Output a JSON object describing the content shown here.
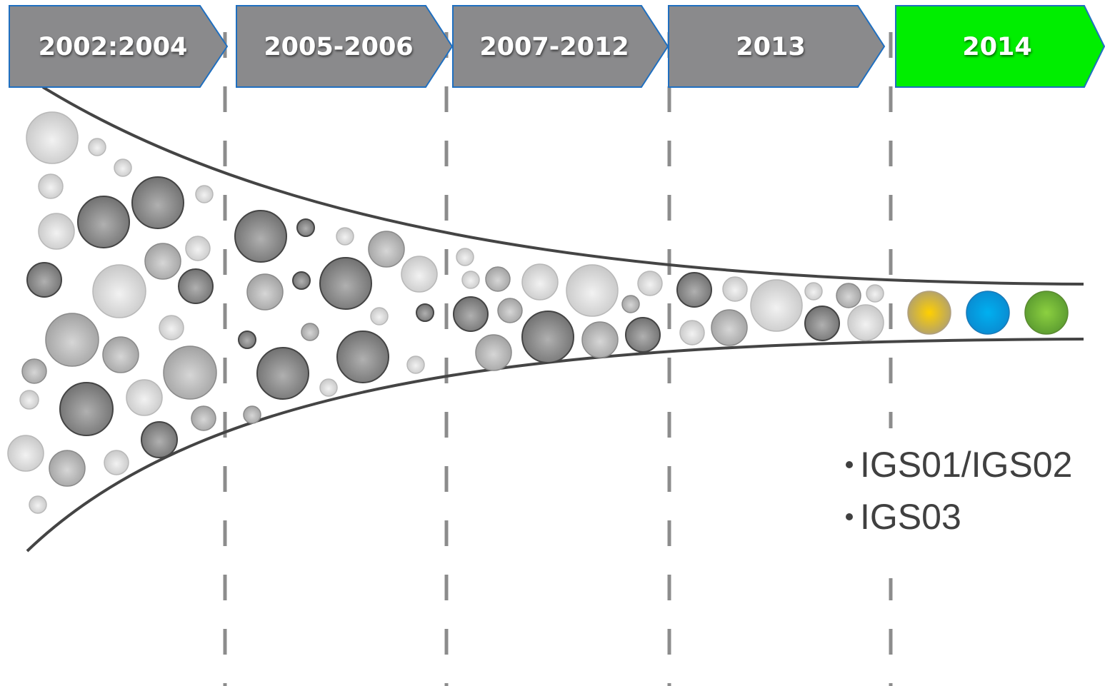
{
  "timeline": [
    {
      "label": "2002:2004"
    },
    {
      "label": "2005-2006"
    },
    {
      "label": "2007-2012"
    },
    {
      "label": "2013"
    },
    {
      "label": "2014"
    }
  ],
  "bullets": [
    "IGS01/IGS02",
    "IGS03"
  ]
}
